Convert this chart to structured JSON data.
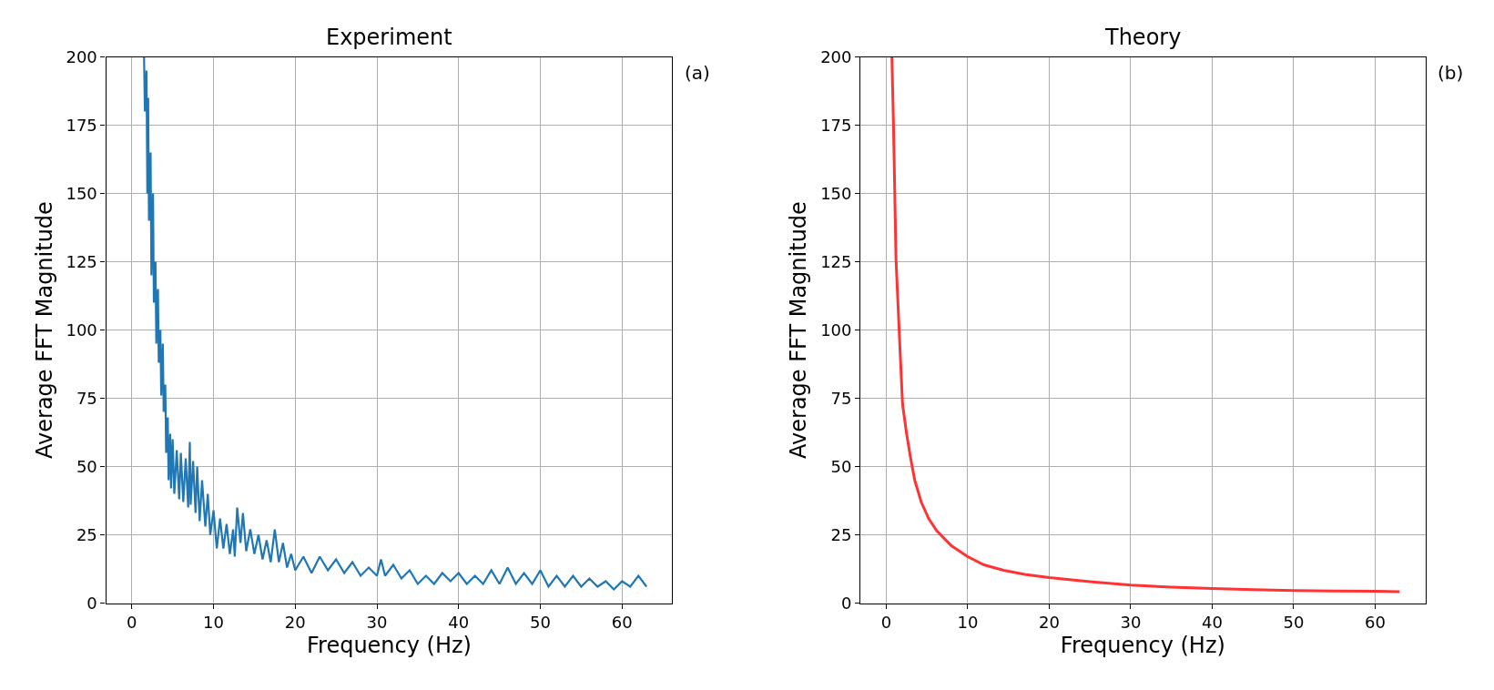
{
  "chart_data": [
    {
      "type": "line",
      "title": "Experiment",
      "xlabel": "Frequency (Hz)",
      "ylabel": "Average FFT Magnitude",
      "annotations": [
        "(a)"
      ],
      "grid": true,
      "marker": "none",
      "line_style": "solid",
      "xlim": [
        -3.15,
        66.15
      ],
      "xticks": [
        0,
        10,
        20,
        30,
        40,
        50,
        60
      ],
      "ylim": [
        0,
        200
      ],
      "yticks": [
        0,
        25,
        50,
        75,
        100,
        125,
        150,
        175,
        200
      ],
      "series": [
        {
          "color": "#1f77b4",
          "x": [
            1.5,
            1.6,
            1.8,
            1.9,
            2.0,
            2.1,
            2.3,
            2.4,
            2.6,
            2.7,
            2.9,
            3.0,
            3.2,
            3.3,
            3.5,
            3.6,
            3.8,
            3.9,
            4.1,
            4.2,
            4.4,
            4.5,
            4.7,
            4.8,
            5.0,
            5.2,
            5.5,
            5.8,
            6.0,
            6.3,
            6.6,
            6.9,
            7.1,
            7.2,
            7.5,
            7.8,
            8.0,
            8.3,
            8.6,
            9.0,
            9.3,
            9.6,
            10.0,
            10.4,
            10.8,
            11.2,
            11.6,
            12.0,
            12.4,
            12.6,
            12.9,
            13.3,
            13.6,
            14.0,
            14.5,
            15.0,
            15.5,
            16.0,
            16.5,
            17.0,
            17.5,
            18.0,
            18.5,
            19.0,
            19.5,
            20.0,
            21.0,
            22.0,
            23.0,
            24.0,
            25.0,
            26.0,
            27.0,
            28.0,
            29.0,
            30.0,
            30.5,
            31.0,
            32.0,
            33.0,
            34.0,
            35.0,
            36.0,
            37.0,
            38.0,
            39.0,
            40.0,
            41.0,
            42.0,
            43.0,
            44.0,
            45.0,
            46.0,
            47.0,
            48.0,
            49.0,
            50.0,
            51.0,
            52.0,
            53.0,
            54.0,
            55.0,
            56.0,
            57.0,
            58.0,
            59.0,
            60.0,
            61.0,
            62.0,
            63.0
          ],
          "values": [
            200,
            180,
            195,
            150,
            185,
            140,
            165,
            120,
            150,
            110,
            125,
            95,
            115,
            88,
            100,
            76,
            95,
            70,
            80,
            55,
            68,
            45,
            62,
            42,
            60,
            40,
            56,
            38,
            55,
            37,
            53,
            35,
            59,
            36,
            52,
            33,
            50,
            30,
            45,
            28,
            40,
            25,
            34,
            20,
            31,
            20,
            29,
            18,
            27,
            17,
            35,
            22,
            33,
            19,
            27,
            18,
            25,
            16,
            23,
            15,
            27,
            15,
            22,
            13,
            18,
            12,
            17,
            11,
            17,
            12,
            16,
            11,
            15,
            10,
            13,
            10,
            16,
            10,
            14,
            9,
            12,
            7,
            10,
            7,
            11,
            8,
            11,
            7,
            10,
            7,
            12,
            7,
            13,
            7,
            11,
            7,
            12,
            6,
            10,
            6,
            10,
            6,
            9,
            6,
            8,
            5,
            8,
            6,
            10,
            6
          ]
        }
      ]
    },
    {
      "type": "line",
      "title": "Theory",
      "xlabel": "Frequency (Hz)",
      "ylabel": "Average FFT Magnitude",
      "annotations": [
        "(b)"
      ],
      "grid": true,
      "marker": "none",
      "line_style": "solid",
      "xlim": [
        -3.15,
        66.15
      ],
      "xticks": [
        0,
        10,
        20,
        30,
        40,
        50,
        60
      ],
      "ylim": [
        0,
        200
      ],
      "yticks": [
        0,
        25,
        50,
        75,
        100,
        125,
        150,
        175,
        200
      ],
      "series": [
        {
          "color": "#ff3333",
          "x": [
            0.7,
            0.9,
            1.2,
            1.6,
            2.0,
            2.5,
            3.0,
            3.5,
            4.3,
            5.2,
            6.2,
            8.0,
            10.0,
            12.0,
            14.4,
            17.0,
            20.0,
            25.0,
            30.0,
            35.0,
            40.0,
            45.0,
            50.0,
            55.0,
            60.0,
            63.0
          ],
          "values": [
            200,
            174,
            126,
            99,
            73,
            62,
            53,
            45,
            37,
            31,
            26.5,
            21,
            17,
            14,
            12,
            10.5,
            9.3,
            7.8,
            6.6,
            5.8,
            5.3,
            4.9,
            4.6,
            4.4,
            4.3,
            4.2
          ]
        }
      ]
    }
  ]
}
